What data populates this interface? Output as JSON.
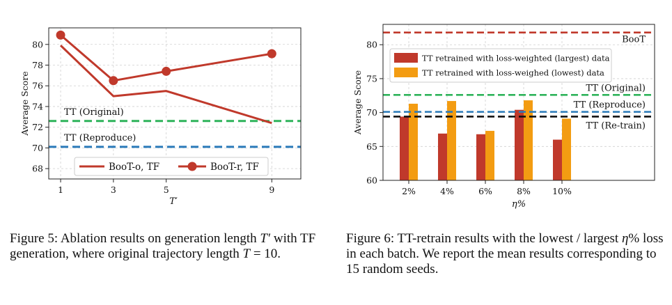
{
  "chart_data": [
    {
      "type": "line",
      "xlabel": "T′",
      "ylabel": "Average Score",
      "x": [
        1,
        3,
        5,
        9
      ],
      "xticks": [
        "1",
        "3",
        "5",
        "9"
      ],
      "ylim": [
        67,
        81.6
      ],
      "yticks": [
        68,
        70,
        72,
        74,
        76,
        78,
        80
      ],
      "grid": true,
      "legend_position": "lower-center",
      "series": [
        {
          "name": "BooT-o, TF",
          "values": [
            79.9,
            75.0,
            75.5,
            72.4
          ],
          "color": "#c0392b",
          "marker": "none"
        },
        {
          "name": "BooT-r, TF",
          "values": [
            80.9,
            76.5,
            77.4,
            79.1
          ],
          "color": "#c0392b",
          "marker": "circle"
        }
      ],
      "reference_lines": [
        {
          "label": "TT (Original)",
          "value": 72.6,
          "color": "#2eb35a"
        },
        {
          "label": "TT (Reproduce)",
          "value": 70.1,
          "color": "#2a7ab9"
        }
      ]
    },
    {
      "type": "bar",
      "xlabel": "η%",
      "ylabel": "Average Score",
      "categories": [
        "2%",
        "4%",
        "6%",
        "8%",
        "10%"
      ],
      "ylim": [
        60,
        83
      ],
      "yticks": [
        60,
        65,
        70,
        75,
        80
      ],
      "grid": true,
      "legend_position": "top-left",
      "series": [
        {
          "name": "TT retrained with loss-weighted (largest) data",
          "values": [
            69.4,
            66.9,
            66.8,
            70.4,
            66.0
          ],
          "color": "#c0392b"
        },
        {
          "name": "TT retrained with loss-weighed (lowest) data",
          "values": [
            71.3,
            71.7,
            67.3,
            71.8,
            69.1
          ],
          "color": "#f39c12"
        }
      ],
      "reference_lines": [
        {
          "label": "BooT",
          "value": 81.8,
          "color": "#c0392b"
        },
        {
          "label": "TT (Original)",
          "value": 72.6,
          "color": "#2eb35a"
        },
        {
          "label": "TT (Reproduce)",
          "value": 70.1,
          "color": "#2a7ab9"
        },
        {
          "label": "TT (Re-train)",
          "value": 69.4,
          "color": "#111111"
        }
      ]
    }
  ],
  "captions": {
    "fig5": {
      "prefix": "Figure 5: Ablation results on generation length ",
      "sym1": "T′",
      "middle": " with TF generation, where original trajectory length ",
      "sym2": "T",
      "suffix": " = 10."
    },
    "fig6": {
      "prefix": "Figure 6: TT-retrain results with the lowest / largest ",
      "sym1": "η",
      "suffix": "% loss in each batch. We report the mean results corresponding to 15 random seeds."
    }
  }
}
